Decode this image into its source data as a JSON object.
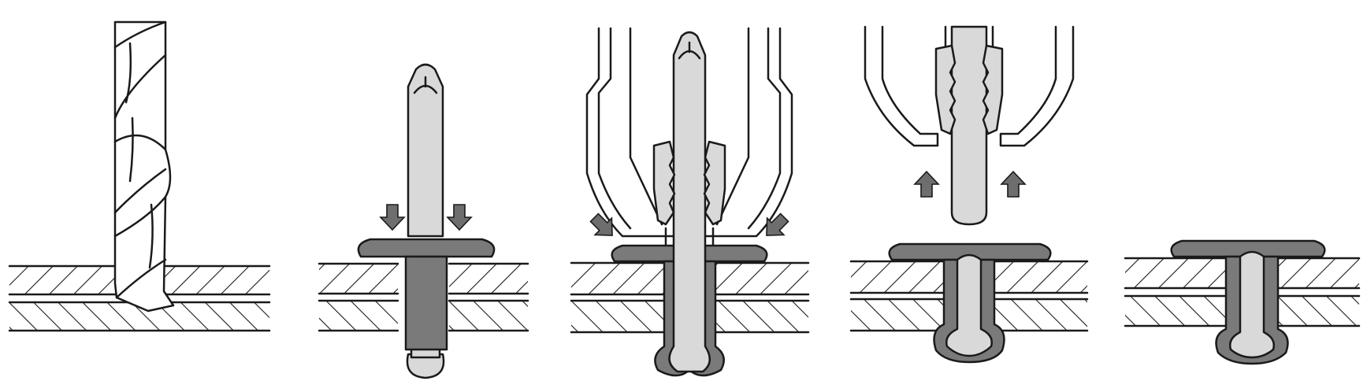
{
  "diagram": {
    "colors": {
      "outline": "#1a1a1a",
      "mandrel": "#d9d9d9",
      "rivet_body": "#7a7a7a",
      "arrow": "#6e6e6e",
      "background": "#ffffff"
    },
    "steps": [
      {
        "id": "drill-hole",
        "icons": [
          "drill-bit-icon",
          "hatched-plates"
        ]
      },
      {
        "id": "insert-rivet",
        "icons": [
          "rivet-mandrel",
          "rivet-flange",
          "down-arrow-icon"
        ]
      },
      {
        "id": "apply-tool",
        "icons": [
          "nose-piece",
          "jaws",
          "diagonal-arrow-icon"
        ]
      },
      {
        "id": "pull-mandrel",
        "icons": [
          "jaws",
          "up-arrow-icon",
          "broken-mandrel"
        ]
      },
      {
        "id": "set-rivet",
        "icons": [
          "set-rivet-body"
        ]
      }
    ]
  }
}
